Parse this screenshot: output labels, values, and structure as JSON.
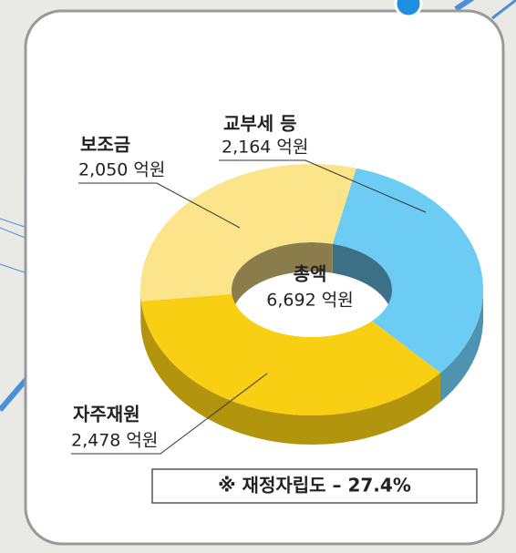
{
  "chart_data": {
    "type": "donut",
    "categories": [
      "교부세 등",
      "자주재원",
      "보조금"
    ],
    "values": [
      2164,
      2478,
      2050
    ],
    "value_labels": [
      "2,164 억원",
      "2,478 억원",
      "2,050 억원"
    ],
    "colors": [
      "#6cccf4",
      "#f8cf12",
      "#fbe489"
    ],
    "center_text": [
      "총액",
      "6,692 억원"
    ],
    "note": "※ 재정자립도 – 27.4%"
  }
}
